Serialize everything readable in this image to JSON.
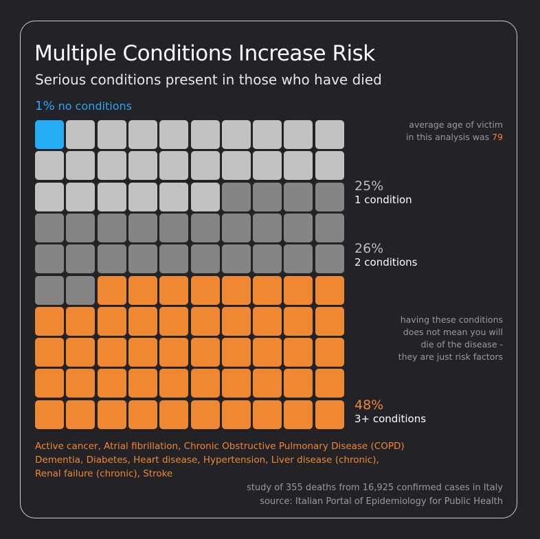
{
  "header": {
    "title": "Multiple Conditions Increase Risk",
    "subtitle": "Serious conditions present in those who have died"
  },
  "no_conditions": {
    "percent": "1%",
    "label": "no conditions"
  },
  "notes": {
    "age_text": "average age of victim",
    "age_text2": "in this analysis was",
    "age_value": "79",
    "risk_lines": [
      "having these conditions",
      "does not mean you will",
      "die of the disease -",
      "they are just risk factors"
    ]
  },
  "stats": [
    {
      "percent": "25%",
      "label": "1 condition"
    },
    {
      "percent": "26%",
      "label": "2 conditions"
    },
    {
      "percent": "48%",
      "label": "3+ conditions"
    }
  ],
  "conditions_lines": [
    "Active cancer, Atrial fibrillation, Chronic Obstructive Pulmonary Disease (COPD)",
    "Dementia, Diabetes, Heart disease, Hypertension, Liver disease (chronic),",
    "Renal failure (chronic), Stroke"
  ],
  "footer": {
    "study": "study of 355 deaths from 16,925 confirmed cases in Italy",
    "source": "source: Italian Portal of Epidemiology for Public Health"
  },
  "chart_data": {
    "type": "waffle",
    "title": "Multiple Conditions Increase Risk",
    "grid": {
      "rows": 10,
      "cols": 10
    },
    "categories": [
      "no conditions",
      "1 condition",
      "2 conditions",
      "3+ conditions"
    ],
    "values": [
      1,
      25,
      26,
      48
    ],
    "colors": [
      "#25adf4",
      "#c2c2c2",
      "#858585",
      "#ee8833"
    ]
  }
}
